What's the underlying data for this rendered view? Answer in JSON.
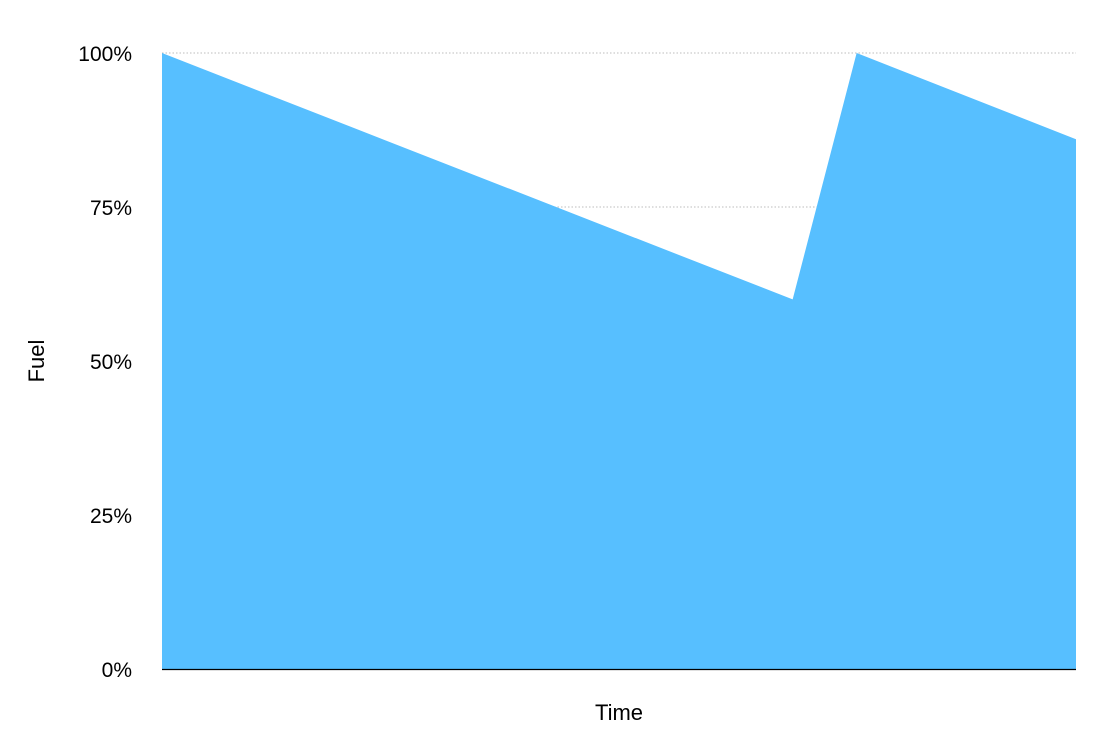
{
  "chart_data": {
    "type": "area",
    "xlabel": "Time",
    "ylabel": "Fuel",
    "x": [
      0,
      69,
      76,
      100
    ],
    "series": [
      {
        "values": [
          100,
          60,
          100,
          86
        ]
      }
    ],
    "xlim": [
      0,
      100
    ],
    "ylim": [
      0,
      100
    ],
    "y_ticks": [
      {
        "value": 0,
        "label": "0%"
      },
      {
        "value": 25,
        "label": "25%"
      },
      {
        "value": 50,
        "label": "50%"
      },
      {
        "value": 75,
        "label": "75%"
      },
      {
        "value": 100,
        "label": "100%"
      }
    ],
    "grid": "horizontal-dotted",
    "legend": "none",
    "colors": {
      "area": "#57bfff",
      "grid": "#bdbdbd",
      "axis": "#000000"
    }
  }
}
